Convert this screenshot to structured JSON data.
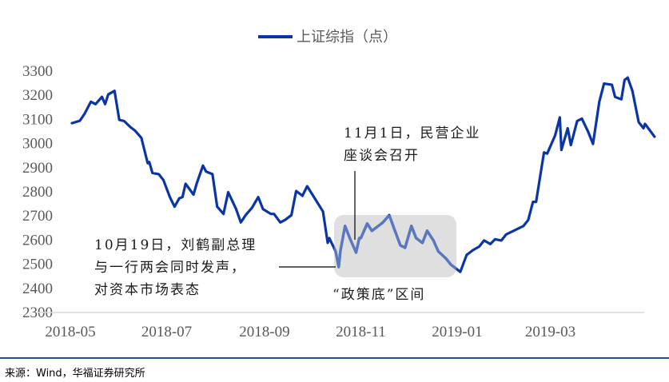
{
  "legend": {
    "label": "上证综指（点）",
    "color": "#0a35a5"
  },
  "annotations": {
    "nov1": {
      "lines": [
        "11月1日，民营企业",
        "座谈会召开"
      ]
    },
    "oct19": {
      "lines": [
        "10月19日，刘鹤副总理",
        "与一行两会同时发声，",
        "对资本市场表态"
      ]
    },
    "zone": {
      "label": "“政策底”区间"
    }
  },
  "source": "来源：Wind，华福证券研究所",
  "colors": {
    "line": "#0a35a5",
    "line_in_zone": "#5a78c0",
    "zone_fill": "#d9d9d9",
    "axis": "#d9d9d9",
    "rule": "#1f4e8c"
  },
  "chart_data": {
    "type": "line",
    "title": "",
    "legend": [
      "上证综指（点）"
    ],
    "legend_position": "top",
    "xlabel": "",
    "ylabel": "",
    "ylim": [
      2300,
      3300
    ],
    "yticks": [
      3300,
      3200,
      3100,
      3000,
      2900,
      2800,
      2700,
      2600,
      2500,
      2400,
      2300
    ],
    "xticks": [
      "2018-05",
      "2018-07",
      "2018-09",
      "2018-11",
      "2019-01",
      "2019-03"
    ],
    "grid": false,
    "highlight_region": {
      "label": "“政策底”区间",
      "x_start": "2018-10-19",
      "x_end": "2019-01-04",
      "y_range": [
        2450,
        2700
      ]
    },
    "series": [
      {
        "name": "上证综指（点）",
        "points": [
          [
            "2018-05-02",
            3081
          ],
          [
            "2018-05-07",
            3091
          ],
          [
            "2018-05-10",
            3120
          ],
          [
            "2018-05-14",
            3170
          ],
          [
            "2018-05-17",
            3160
          ],
          [
            "2018-05-21",
            3190
          ],
          [
            "2018-05-23",
            3160
          ],
          [
            "2018-05-25",
            3200
          ],
          [
            "2018-05-29",
            3215
          ],
          [
            "2018-06-01",
            3095
          ],
          [
            "2018-06-04",
            3090
          ],
          [
            "2018-06-08",
            3065
          ],
          [
            "2018-06-11",
            3050
          ],
          [
            "2018-06-15",
            3020
          ],
          [
            "2018-06-19",
            2915
          ],
          [
            "2018-06-20",
            2920
          ],
          [
            "2018-06-22",
            2875
          ],
          [
            "2018-06-26",
            2870
          ],
          [
            "2018-06-29",
            2845
          ],
          [
            "2018-07-03",
            2775
          ],
          [
            "2018-07-06",
            2735
          ],
          [
            "2018-07-09",
            2770
          ],
          [
            "2018-07-11",
            2775
          ],
          [
            "2018-07-13",
            2830
          ],
          [
            "2018-07-18",
            2785
          ],
          [
            "2018-07-20",
            2830
          ],
          [
            "2018-07-24",
            2905
          ],
          [
            "2018-07-26",
            2880
          ],
          [
            "2018-07-30",
            2870
          ],
          [
            "2018-08-02",
            2735
          ],
          [
            "2018-08-06",
            2705
          ],
          [
            "2018-08-09",
            2795
          ],
          [
            "2018-08-14",
            2725
          ],
          [
            "2018-08-17",
            2670
          ],
          [
            "2018-08-20",
            2700
          ],
          [
            "2018-08-24",
            2730
          ],
          [
            "2018-08-28",
            2775
          ],
          [
            "2018-08-31",
            2725
          ],
          [
            "2018-09-05",
            2705
          ],
          [
            "2018-09-07",
            2705
          ],
          [
            "2018-09-11",
            2670
          ],
          [
            "2018-09-14",
            2680
          ],
          [
            "2018-09-18",
            2700
          ],
          [
            "2018-09-21",
            2800
          ],
          [
            "2018-09-25",
            2780
          ],
          [
            "2018-09-28",
            2820
          ],
          [
            "2018-10-08",
            2715
          ],
          [
            "2018-10-11",
            2585
          ],
          [
            "2018-10-12",
            2605
          ],
          [
            "2018-10-16",
            2550
          ],
          [
            "2018-10-18",
            2485
          ],
          [
            "2018-10-19",
            2550
          ],
          [
            "2018-10-22",
            2655
          ],
          [
            "2018-10-25",
            2605
          ],
          [
            "2018-10-29",
            2545
          ],
          [
            "2018-10-31",
            2605
          ],
          [
            "2018-11-01",
            2605
          ],
          [
            "2018-11-05",
            2665
          ],
          [
            "2018-11-08",
            2635
          ],
          [
            "2018-11-12",
            2655
          ],
          [
            "2018-11-15",
            2670
          ],
          [
            "2018-11-19",
            2700
          ],
          [
            "2018-11-22",
            2645
          ],
          [
            "2018-11-26",
            2575
          ],
          [
            "2018-11-29",
            2565
          ],
          [
            "2018-12-03",
            2655
          ],
          [
            "2018-12-06",
            2605
          ],
          [
            "2018-12-10",
            2585
          ],
          [
            "2018-12-13",
            2635
          ],
          [
            "2018-12-17",
            2595
          ],
          [
            "2018-12-20",
            2550
          ],
          [
            "2018-12-25",
            2520
          ],
          [
            "2018-12-28",
            2495
          ],
          [
            "2019-01-03",
            2465
          ],
          [
            "2019-01-07",
            2535
          ],
          [
            "2019-01-11",
            2555
          ],
          [
            "2019-01-15",
            2570
          ],
          [
            "2019-01-18",
            2595
          ],
          [
            "2019-01-22",
            2580
          ],
          [
            "2019-01-25",
            2600
          ],
          [
            "2019-01-29",
            2595
          ],
          [
            "2019-02-01",
            2620
          ],
          [
            "2019-02-12",
            2655
          ],
          [
            "2019-02-15",
            2680
          ],
          [
            "2019-02-18",
            2755
          ],
          [
            "2019-02-20",
            2755
          ],
          [
            "2019-02-25",
            2960
          ],
          [
            "2019-02-27",
            2955
          ],
          [
            "2019-03-04",
            3030
          ],
          [
            "2019-03-07",
            3105
          ],
          [
            "2019-03-08",
            2970
          ],
          [
            "2019-03-12",
            3060
          ],
          [
            "2019-03-14",
            2990
          ],
          [
            "2019-03-18",
            3090
          ],
          [
            "2019-03-21",
            3100
          ],
          [
            "2019-03-25",
            3045
          ],
          [
            "2019-03-28",
            2995
          ],
          [
            "2019-04-01",
            3170
          ],
          [
            "2019-04-04",
            3245
          ],
          [
            "2019-04-09",
            3240
          ],
          [
            "2019-04-11",
            3190
          ],
          [
            "2019-04-15",
            3180
          ],
          [
            "2019-04-17",
            3260
          ],
          [
            "2019-04-19",
            3270
          ],
          [
            "2019-04-22",
            3215
          ],
          [
            "2019-04-26",
            3085
          ],
          [
            "2019-04-29",
            3060
          ],
          [
            "2019-04-30",
            3078
          ],
          [
            "2019-05-06",
            3025
          ]
        ]
      }
    ]
  }
}
